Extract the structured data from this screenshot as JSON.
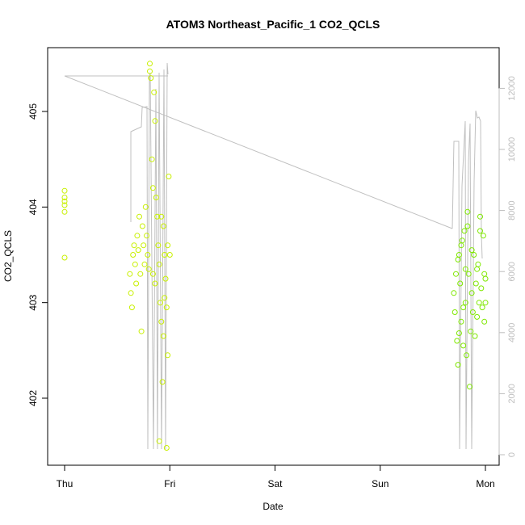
{
  "chart_data": {
    "type": "scatter",
    "title": "ATOM3 Northeast_Pacific_1 CO2_QCLS",
    "xlabel": "Date",
    "ylabel": "CO2_QCLS",
    "x_tick_labels": [
      "Thu",
      "Fri",
      "Sat",
      "Sun",
      "Mon"
    ],
    "xlim": [
      0,
      4.1
    ],
    "ylim": [
      401.4,
      405.6
    ],
    "y_ticks": [
      402,
      403,
      404,
      405
    ],
    "y2lim": [
      -100,
      12800
    ],
    "y2_ticks": [
      0,
      2000,
      4000,
      6000,
      8000,
      10000,
      12000
    ],
    "grid": false,
    "legend": "none",
    "colors": {
      "co2_early": "#c8f000",
      "co2_late": "#7fe800",
      "secondary_line": "#c0c0c0",
      "right_axis": "#bdbdbd",
      "axis": "#000000"
    },
    "series": [
      {
        "axis": "left",
        "color_key": "co2_early",
        "points": [
          [
            0.0,
            403.47
          ],
          [
            0.0,
            403.95
          ],
          [
            0.0,
            404.02
          ],
          [
            0.0,
            404.1
          ],
          [
            0.0,
            404.17
          ],
          [
            0.0,
            404.06
          ],
          [
            0.62,
            403.3
          ],
          [
            0.63,
            403.1
          ],
          [
            0.64,
            402.95
          ],
          [
            0.65,
            403.5
          ],
          [
            0.66,
            403.6
          ],
          [
            0.67,
            403.4
          ],
          [
            0.68,
            403.2
          ],
          [
            0.69,
            403.7
          ],
          [
            0.7,
            403.55
          ],
          [
            0.71,
            403.9
          ],
          [
            0.72,
            403.3
          ],
          [
            0.73,
            402.7
          ],
          [
            0.74,
            403.8
          ],
          [
            0.75,
            403.6
          ],
          [
            0.76,
            403.4
          ],
          [
            0.77,
            404.0
          ],
          [
            0.78,
            403.7
          ],
          [
            0.79,
            403.5
          ],
          [
            0.8,
            403.35
          ],
          [
            0.81,
            405.5
          ],
          [
            0.81,
            405.42
          ],
          [
            0.82,
            405.35
          ],
          [
            0.83,
            404.5
          ],
          [
            0.84,
            404.2
          ],
          [
            0.85,
            405.2
          ],
          [
            0.86,
            404.9
          ],
          [
            0.87,
            404.1
          ],
          [
            0.88,
            403.9
          ],
          [
            0.89,
            403.6
          ],
          [
            0.9,
            403.4
          ],
          [
            0.91,
            403.0
          ],
          [
            0.92,
            402.8
          ],
          [
            0.93,
            402.17
          ],
          [
            0.94,
            403.8
          ],
          [
            0.95,
            403.5
          ],
          [
            0.96,
            403.25
          ],
          [
            0.97,
            402.95
          ],
          [
            0.97,
            401.48
          ],
          [
            0.98,
            403.6
          ],
          [
            0.98,
            402.45
          ],
          [
            0.99,
            404.32
          ],
          [
            1.0,
            403.5
          ],
          [
            0.86,
            403.2
          ],
          [
            0.84,
            403.3
          ],
          [
            0.92,
            403.9
          ],
          [
            0.94,
            402.65
          ],
          [
            0.9,
            401.55
          ],
          [
            0.95,
            403.05
          ]
        ]
      },
      {
        "axis": "left",
        "color_key": "co2_late",
        "points": [
          [
            3.7,
            403.1
          ],
          [
            3.71,
            402.9
          ],
          [
            3.72,
            403.3
          ],
          [
            3.73,
            402.6
          ],
          [
            3.74,
            402.35
          ],
          [
            3.75,
            403.5
          ],
          [
            3.76,
            403.2
          ],
          [
            3.77,
            402.8
          ],
          [
            3.78,
            403.65
          ],
          [
            3.79,
            402.55
          ],
          [
            3.8,
            403.75
          ],
          [
            3.81,
            403.0
          ],
          [
            3.82,
            402.45
          ],
          [
            3.83,
            403.95
          ],
          [
            3.84,
            403.3
          ],
          [
            3.85,
            402.12
          ],
          [
            3.86,
            402.7
          ],
          [
            3.87,
            403.1
          ],
          [
            3.88,
            402.9
          ],
          [
            3.89,
            403.5
          ],
          [
            3.9,
            402.65
          ],
          [
            3.91,
            403.2
          ],
          [
            3.92,
            402.85
          ],
          [
            3.93,
            403.4
          ],
          [
            3.94,
            403.0
          ],
          [
            3.95,
            403.9
          ],
          [
            3.95,
            403.75
          ],
          [
            3.96,
            403.15
          ],
          [
            3.97,
            402.95
          ],
          [
            3.98,
            403.7
          ],
          [
            3.99,
            403.3
          ],
          [
            3.99,
            402.8
          ],
          [
            4.0,
            403.0
          ],
          [
            4.0,
            403.25
          ],
          [
            3.74,
            403.45
          ],
          [
            3.77,
            403.6
          ],
          [
            3.83,
            403.8
          ],
          [
            3.87,
            403.55
          ],
          [
            3.92,
            403.35
          ],
          [
            3.79,
            402.95
          ],
          [
            3.75,
            402.68
          ],
          [
            3.81,
            403.35
          ]
        ]
      }
    ]
  }
}
